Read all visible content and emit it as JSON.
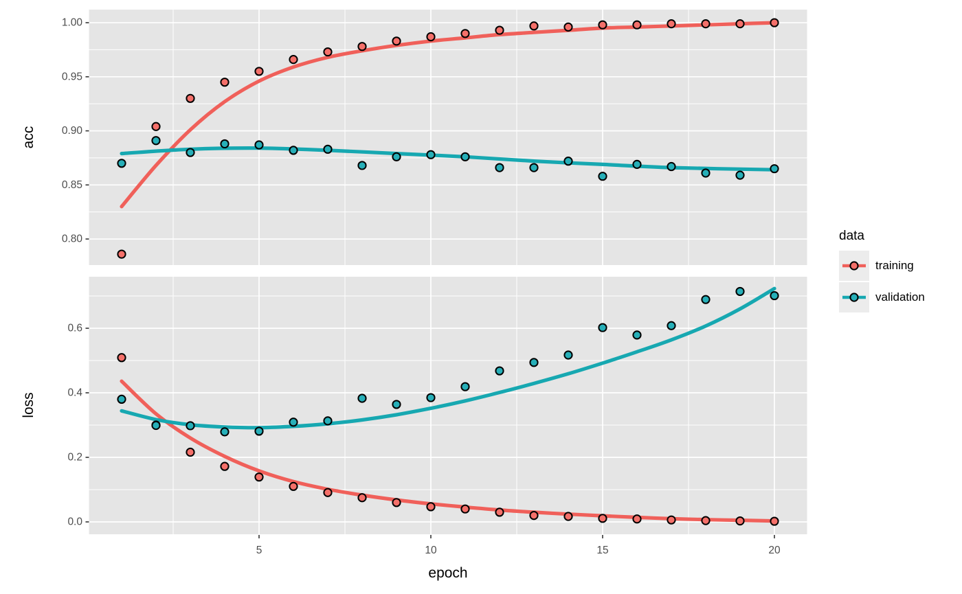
{
  "figure": {
    "background": "#FFFFFF",
    "panel_background": "#E5E5E5",
    "grid_color": "#FFFFFF",
    "tick_text_color": "#4D4D4D",
    "tick_mark_color": "#333333",
    "axis_title_color": "#000000",
    "point_stroke_color": "#000000"
  },
  "legend": {
    "title": "data",
    "key_background": "#ECECEC",
    "items": [
      {
        "label": "training",
        "line_color": "#F0605A",
        "fill_color": "#F4706A"
      },
      {
        "label": "validation",
        "line_color": "#17A8B1",
        "fill_color": "#27AFB8"
      }
    ]
  },
  "x_axis": {
    "title": "epoch",
    "limits": [
      0.05,
      20.95
    ],
    "major_ticks": [
      {
        "value": 5,
        "label": "5"
      },
      {
        "value": 10,
        "label": "10"
      },
      {
        "value": 15,
        "label": "15"
      },
      {
        "value": 20,
        "label": "20"
      }
    ],
    "minor_breaks": [
      2.5,
      7.5,
      12.5,
      17.5
    ]
  },
  "chart_data": [
    {
      "type": "scatter",
      "facet": "acc",
      "ylabel": "acc",
      "ylim": [
        0.7759,
        1.0121
      ],
      "yticks": [
        {
          "value": 1.0,
          "label": "1.00"
        },
        {
          "value": 0.95,
          "label": "0.95"
        },
        {
          "value": 0.9,
          "label": "0.90"
        },
        {
          "value": 0.85,
          "label": "0.85"
        },
        {
          "value": 0.8,
          "label": "0.80"
        }
      ],
      "minor_breaks_y": [
        0.825,
        0.875,
        0.925,
        0.975
      ],
      "x": [
        1,
        2,
        3,
        4,
        5,
        6,
        7,
        8,
        9,
        10,
        11,
        12,
        13,
        14,
        15,
        16,
        17,
        18,
        19,
        20
      ],
      "series": [
        {
          "name": "training",
          "color_key": 0,
          "values": [
            0.786,
            0.904,
            0.93,
            0.945,
            0.955,
            0.966,
            0.973,
            0.978,
            0.983,
            0.987,
            0.99,
            0.993,
            0.997,
            0.996,
            0.998,
            0.998,
            0.999,
            0.999,
            0.999,
            1.0
          ]
        },
        {
          "name": "validation",
          "color_key": 1,
          "values": [
            0.87,
            0.891,
            0.88,
            0.888,
            0.887,
            0.882,
            0.883,
            0.868,
            0.876,
            0.878,
            0.876,
            0.866,
            0.866,
            0.872,
            0.858,
            0.869,
            0.867,
            0.861,
            0.859,
            0.865
          ]
        }
      ],
      "smooth": [
        {
          "name": "training",
          "color_key": 0,
          "points": [
            [
              1,
              0.83
            ],
            [
              2,
              0.868
            ],
            [
              3,
              0.901
            ],
            [
              4,
              0.927
            ],
            [
              5,
              0.946
            ],
            [
              6,
              0.959
            ],
            [
              7,
              0.968
            ],
            [
              8,
              0.974
            ],
            [
              9,
              0.979
            ],
            [
              10,
              0.983
            ],
            [
              11,
              0.986
            ],
            [
              12,
              0.989
            ],
            [
              13,
              0.991
            ],
            [
              14,
              0.993
            ],
            [
              15,
              0.995
            ],
            [
              16,
              0.996
            ],
            [
              17,
              0.997
            ],
            [
              18,
              0.998
            ],
            [
              19,
              0.999
            ],
            [
              20,
              1.0
            ]
          ]
        },
        {
          "name": "validation",
          "color_key": 1,
          "points": [
            [
              1,
              0.879
            ],
            [
              3,
              0.883
            ],
            [
              5,
              0.884
            ],
            [
              7,
              0.882
            ],
            [
              9,
              0.879
            ],
            [
              11,
              0.876
            ],
            [
              13,
              0.872
            ],
            [
              15,
              0.869
            ],
            [
              17,
              0.866
            ],
            [
              20,
              0.864
            ]
          ]
        }
      ]
    },
    {
      "type": "scatter",
      "facet": "loss",
      "ylabel": "loss",
      "ylim": [
        -0.0383,
        0.7596
      ],
      "yticks": [
        {
          "value": 0.6,
          "label": "0.6"
        },
        {
          "value": 0.4,
          "label": "0.4"
        },
        {
          "value": 0.2,
          "label": "0.2"
        },
        {
          "value": 0.0,
          "label": "0.0"
        }
      ],
      "minor_breaks_y": [
        0.1,
        0.3,
        0.5,
        0.7
      ],
      "x": [
        1,
        2,
        3,
        4,
        5,
        6,
        7,
        8,
        9,
        10,
        11,
        12,
        13,
        14,
        15,
        16,
        17,
        18,
        19,
        20
      ],
      "series": [
        {
          "name": "training",
          "color_key": 0,
          "values": [
            0.509,
            0.3,
            0.216,
            0.172,
            0.139,
            0.11,
            0.091,
            0.075,
            0.06,
            0.047,
            0.04,
            0.03,
            0.02,
            0.017,
            0.011,
            0.009,
            0.006,
            0.004,
            0.003,
            0.002
          ]
        },
        {
          "name": "validation",
          "color_key": 1,
          "values": [
            0.38,
            0.299,
            0.298,
            0.279,
            0.281,
            0.309,
            0.313,
            0.383,
            0.364,
            0.385,
            0.419,
            0.468,
            0.494,
            0.517,
            0.602,
            0.579,
            0.608,
            0.689,
            0.714,
            0.701
          ]
        }
      ],
      "smooth": [
        {
          "name": "training",
          "color_key": 0,
          "points": [
            [
              1,
              0.436
            ],
            [
              2,
              0.335
            ],
            [
              3,
              0.26
            ],
            [
              4,
              0.203
            ],
            [
              5,
              0.158
            ],
            [
              6,
              0.125
            ],
            [
              7,
              0.101
            ],
            [
              8,
              0.083
            ],
            [
              9,
              0.068
            ],
            [
              10,
              0.056
            ],
            [
              11,
              0.046
            ],
            [
              12,
              0.037
            ],
            [
              13,
              0.03
            ],
            [
              14,
              0.024
            ],
            [
              15,
              0.019
            ],
            [
              16,
              0.014
            ],
            [
              17,
              0.01
            ],
            [
              18,
              0.007
            ],
            [
              19,
              0.005
            ],
            [
              20,
              0.003
            ]
          ]
        },
        {
          "name": "validation",
          "color_key": 1,
          "points": [
            [
              1,
              0.344
            ],
            [
              2,
              0.317
            ],
            [
              3,
              0.301
            ],
            [
              4,
              0.294
            ],
            [
              5,
              0.292
            ],
            [
              6,
              0.296
            ],
            [
              7,
              0.304
            ],
            [
              8,
              0.316
            ],
            [
              9,
              0.332
            ],
            [
              10,
              0.352
            ],
            [
              11,
              0.375
            ],
            [
              12,
              0.401
            ],
            [
              13,
              0.429
            ],
            [
              14,
              0.459
            ],
            [
              15,
              0.492
            ],
            [
              16,
              0.527
            ],
            [
              17,
              0.564
            ],
            [
              18,
              0.607
            ],
            [
              19,
              0.66
            ],
            [
              20,
              0.723
            ]
          ]
        }
      ]
    }
  ]
}
